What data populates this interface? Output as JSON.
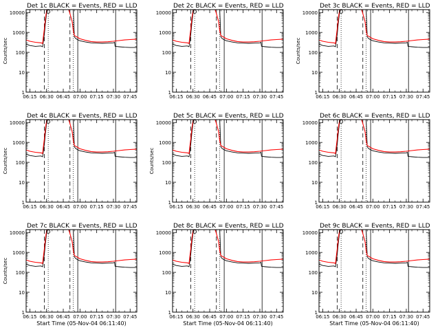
{
  "chart_data": [
    {
      "type": "line",
      "title": "Det 1c BLACK = Events, RED = LLD",
      "ylabel": "Counts/sec",
      "xlabel": "",
      "show_xlabel": false
    },
    {
      "type": "line",
      "title": "Det 2c BLACK = Events, RED = LLD",
      "ylabel": "",
      "xlabel": "",
      "show_xlabel": false
    },
    {
      "type": "line",
      "title": "Det 3c BLACK = Events, RED = LLD",
      "ylabel": "Counts/sec",
      "xlabel": "",
      "show_xlabel": false
    },
    {
      "type": "line",
      "title": "Det 4c BLACK = Events, RED = LLD",
      "ylabel": "Counts/sec",
      "xlabel": "",
      "show_xlabel": false
    },
    {
      "type": "line",
      "title": "Det 5c BLACK = Events, RED = LLD",
      "ylabel": "Counts/sec",
      "xlabel": "",
      "show_xlabel": false
    },
    {
      "type": "line",
      "title": "Det 6c BLACK = Events, RED = LLD",
      "ylabel": "",
      "xlabel": "",
      "show_xlabel": false
    },
    {
      "type": "line",
      "title": "Det 7c BLACK = Events, RED = LLD",
      "ylabel": "Counts/sec",
      "xlabel": "Start Time (05-Nov-04 06:11:40)",
      "show_xlabel": true
    },
    {
      "type": "line",
      "title": "Det 8c BLACK = Events, RED = LLD",
      "ylabel": "",
      "xlabel": "Start Time (05-Nov-04 06:11:40)",
      "show_xlabel": true
    },
    {
      "type": "line",
      "title": "Det 9c BLACK = Events, RED = LLD",
      "ylabel": "",
      "xlabel": "Start Time (05-Nov-04 06:11:40)",
      "show_xlabel": true
    }
  ],
  "shared": {
    "x_tick_labels": [
      "06:15",
      "06:30",
      "06:45",
      "07:00",
      "07:15",
      "07:30",
      "07:45"
    ],
    "x_tick_minutes": [
      15,
      30,
      45,
      60,
      75,
      90,
      105
    ],
    "xlim_minutes_after_06_00": [
      11.67,
      111
    ],
    "y_tick_labels": [
      "1",
      "10",
      "100",
      "1000",
      "10000"
    ],
    "y_tick_values": [
      1,
      10,
      100,
      1000,
      10000
    ],
    "ylim": [
      1,
      14000
    ],
    "y_scale": "log",
    "colors": {
      "events": "#000000",
      "lld": "#ff0000"
    },
    "markers": [
      {
        "minute": 28,
        "style": "dashed"
      },
      {
        "minute": 31.5,
        "style": "dotted"
      },
      {
        "minute": 51,
        "style": "dashed"
      },
      {
        "minute": 54,
        "style": "dotted"
      },
      {
        "minute": 58,
        "style": "solid"
      },
      {
        "minute": 92,
        "style": "solid"
      }
    ],
    "series": [
      {
        "name": "Events",
        "color": "#000000",
        "points": [
          [
            11.67,
            260
          ],
          [
            15,
            220
          ],
          [
            20,
            200
          ],
          [
            25,
            210
          ],
          [
            26.5,
            190
          ],
          [
            27,
            300
          ],
          [
            28,
            800
          ],
          [
            29,
            3000
          ],
          [
            30,
            9000
          ],
          [
            31,
            14000
          ],
          [
            54,
            14000
          ],
          [
            55,
            600
          ],
          [
            56,
            500
          ],
          [
            58,
            430
          ],
          [
            60,
            380
          ],
          [
            65,
            330
          ],
          [
            70,
            300
          ],
          [
            75,
            290
          ],
          [
            80,
            285
          ],
          [
            85,
            290
          ],
          [
            90,
            300
          ],
          [
            91,
            320
          ],
          [
            91.5,
            200
          ],
          [
            95,
            190
          ],
          [
            100,
            180
          ],
          [
            105,
            175
          ],
          [
            111,
            175
          ]
        ]
      },
      {
        "name": "LLD",
        "color": "#ff0000",
        "points": [
          [
            11.67,
            420
          ],
          [
            15,
            360
          ],
          [
            20,
            320
          ],
          [
            25,
            300
          ],
          [
            26.5,
            280
          ],
          [
            27,
            500
          ],
          [
            28,
            1500
          ],
          [
            29,
            5000
          ],
          [
            30,
            12000
          ],
          [
            31,
            14000
          ],
          [
            50,
            14000
          ],
          [
            53,
            3500
          ],
          [
            54,
            1200
          ],
          [
            55,
            700
          ],
          [
            58,
            560
          ],
          [
            60,
            480
          ],
          [
            65,
            400
          ],
          [
            70,
            350
          ],
          [
            75,
            330
          ],
          [
            80,
            330
          ],
          [
            85,
            340
          ],
          [
            90,
            360
          ],
          [
            95,
            390
          ],
          [
            100,
            420
          ],
          [
            105,
            440
          ],
          [
            111,
            460
          ]
        ]
      }
    ]
  }
}
